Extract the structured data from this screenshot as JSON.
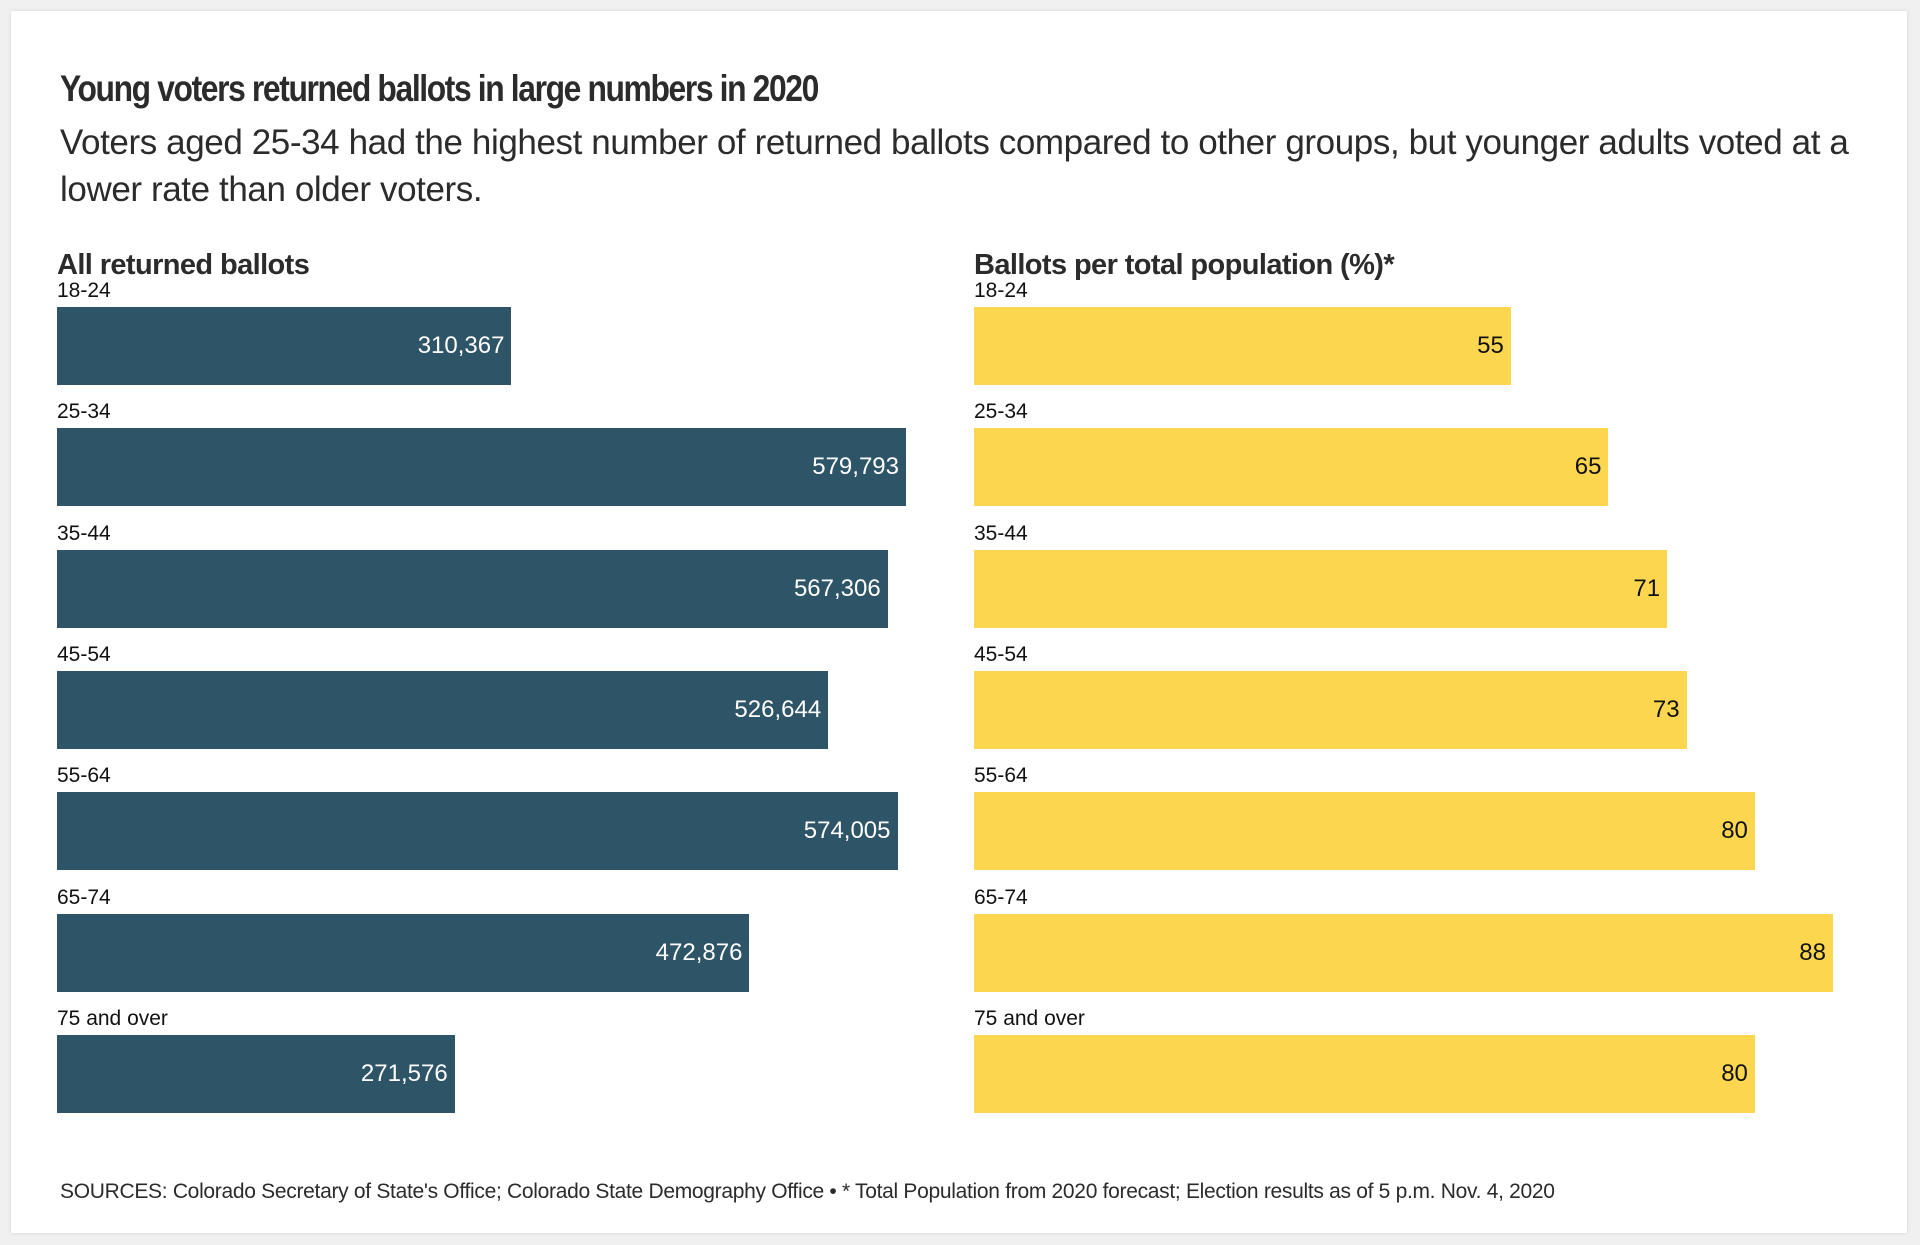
{
  "header": {
    "title": "Young voters returned ballots in large numbers in 2020",
    "subtitle": "Voters aged 25-34 had the highest number of returned ballots compared to other groups, but younger adults voted at a lower rate than older voters."
  },
  "footer": {
    "sources": "SOURCES: Colorado Secretary of State's Office; Colorado State Demography Office • * Total Population from 2020 forecast; Election results as of 5 p.m. Nov. 4, 2020"
  },
  "colors": {
    "left_bar": "#2e5468",
    "right_bar": "#fcd64e",
    "left_value_text": "#ffffff",
    "right_value_text": "#111111"
  },
  "chart_data": [
    {
      "type": "bar",
      "orientation": "horizontal",
      "title": "All returned ballots",
      "xlabel": "",
      "ylabel": "",
      "categories": [
        "18-24",
        "25-34",
        "35-44",
        "45-54",
        "55-64",
        "65-74",
        "75 and over"
      ],
      "values": [
        310367,
        579793,
        567306,
        526644,
        574005,
        472876,
        271576
      ],
      "value_labels": [
        "310,367",
        "579,793",
        "567,306",
        "526,644",
        "574,005",
        "472,876",
        "271,576"
      ],
      "xlim": [
        0,
        579793
      ],
      "grid": false,
      "legend": "none"
    },
    {
      "type": "bar",
      "orientation": "horizontal",
      "title": "Ballots per total population (%)*",
      "xlabel": "",
      "ylabel": "",
      "categories": [
        "18-24",
        "25-34",
        "35-44",
        "45-54",
        "55-64",
        "65-74",
        "75 and over"
      ],
      "values": [
        55,
        65,
        71,
        73,
        80,
        88,
        80
      ],
      "value_labels": [
        "55",
        "65",
        "71",
        "73",
        "80",
        "88",
        "80"
      ],
      "xlim": [
        0,
        88
      ],
      "grid": false,
      "legend": "none"
    }
  ]
}
